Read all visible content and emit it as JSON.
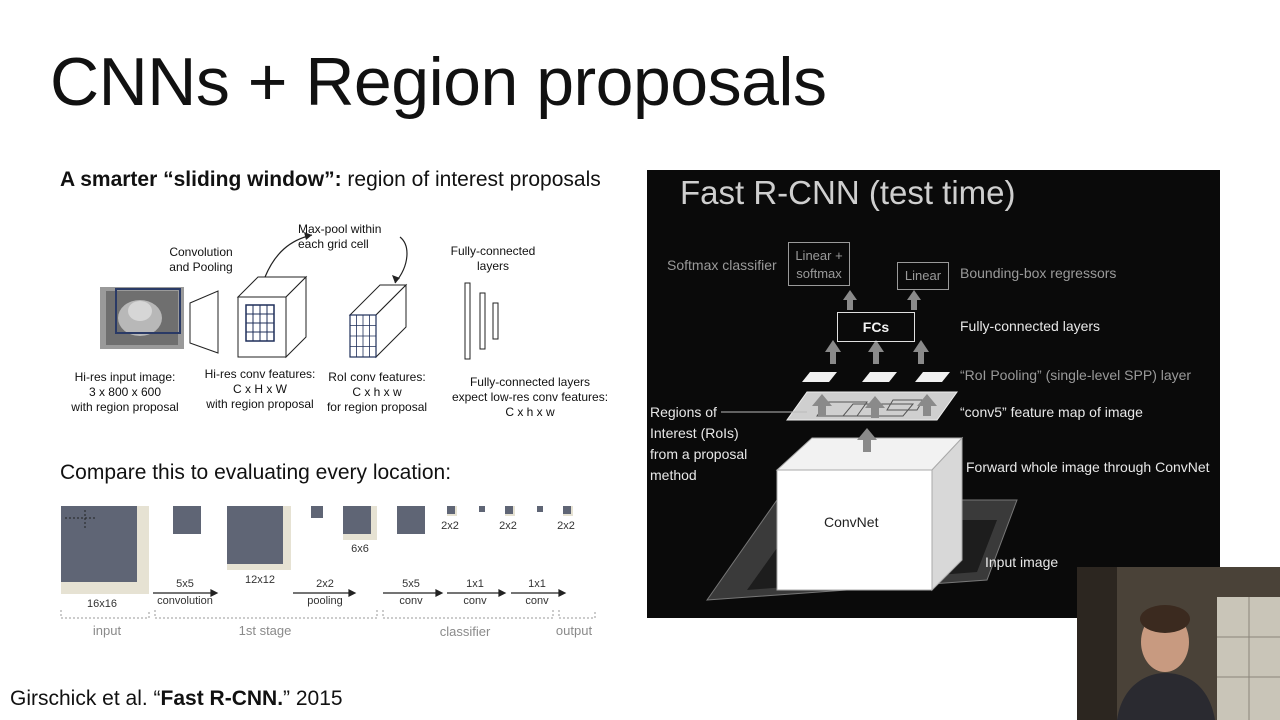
{
  "slide": {
    "title": "CNNs + Region proposals",
    "subtitle_bold": "A smarter “sliding window”:",
    "subtitle_rest": " region of interest proposals",
    "compare_text": "Compare this to evaluating every location:",
    "citation_pre": "Girschick et al. “",
    "citation_bold": "Fast R-CNN.",
    "citation_post": "” 2015"
  },
  "roi_figure": {
    "conv_pool": "Convolution\nand Pooling",
    "maxpool": "Max-pool within\neach grid cell",
    "fc_layers": "Fully-connected\nlayers",
    "hires_input": "Hi-res input image:\n3 x 800 x 600\nwith region proposal",
    "hires_conv": "Hi-res conv features:\nC x H x W\nwith region proposal",
    "roi_conv": "RoI conv features:\nC x h x w\nfor region proposal",
    "fc_expect": "Fully-connected layers\nexpect low-res conv features:\nC x h x w"
  },
  "sliding_figure": {
    "sizes": [
      "16x16",
      "12x12",
      "6x6",
      "2x2",
      "2x2",
      "2x2"
    ],
    "ops": [
      {
        "top": "5x5",
        "bottom": "convolution"
      },
      {
        "top": "2x2",
        "bottom": "pooling"
      },
      {
        "top": "5x5",
        "bottom": "conv"
      },
      {
        "top": "1x1",
        "bottom": "conv"
      },
      {
        "top": "1x1",
        "bottom": "conv"
      }
    ],
    "stages": [
      "input",
      "1st stage",
      "classifier",
      "output"
    ]
  },
  "fast_rcnn": {
    "title": "Fast R-CNN (test time)",
    "softmax_classifier": "Softmax classifier",
    "linear_softmax": "Linear +\nsoftmax",
    "linear": "Linear",
    "bbox_regressors": "Bounding-box regressors",
    "fcs": "FCs",
    "fc_layers": "Fully-connected layers",
    "roi_pooling": "“RoI Pooling” (single-level SPP) layer",
    "conv5": "“conv5” feature map of image",
    "regions": "Regions of\nInterest (RoIs)\nfrom a proposal\nmethod",
    "forward": "Forward whole image through ConvNet",
    "convnet": "ConvNet",
    "input_image": "Input image"
  },
  "colors": {
    "dark_panel": "#0a0a0a",
    "feature_map": "#5c6270",
    "stage_gray": "#8a8a8a"
  }
}
